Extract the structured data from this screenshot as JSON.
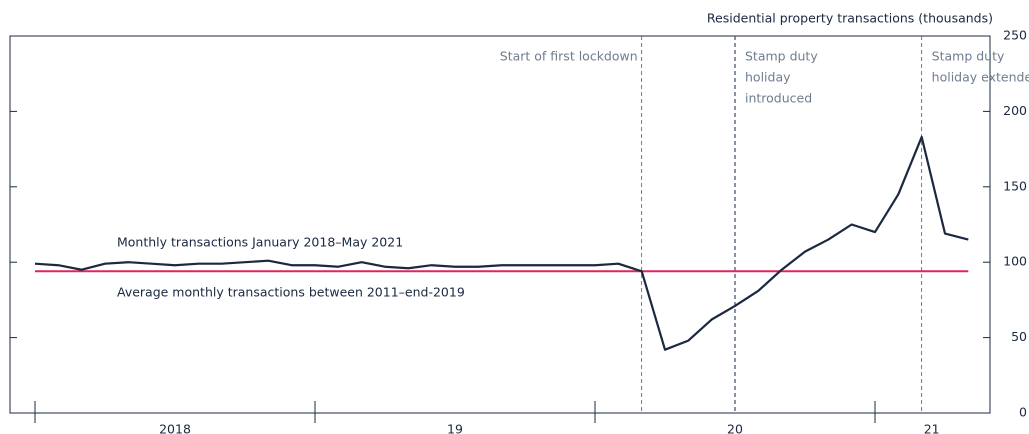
{
  "chart_data": {
    "type": "line",
    "y_axis_label": "Residential property transactions (thousands)",
    "categories": [
      null,
      null,
      null,
      null,
      null,
      null,
      null,
      null,
      null,
      null,
      null,
      null,
      null,
      null,
      null,
      null,
      null,
      null,
      null,
      null,
      null,
      null,
      null,
      null,
      null,
      null,
      null,
      null,
      null,
      null,
      null,
      null,
      null,
      null,
      null,
      null,
      null,
      null,
      null,
      null,
      null
    ],
    "year_labels": [
      "2018",
      "19",
      "20",
      "21"
    ],
    "series": [
      {
        "name": "Monthly transactions January 2018–May 2021",
        "color": "#1b2840",
        "values": [
          99,
          98,
          95,
          99,
          100,
          99,
          98,
          99,
          99,
          100,
          101,
          98,
          98,
          97,
          100,
          97,
          96,
          98,
          97,
          97,
          98,
          98,
          98,
          98,
          98,
          99,
          94,
          42,
          48,
          62,
          71,
          81,
          95,
          107,
          115,
          125,
          120,
          145,
          183,
          119,
          115
        ]
      },
      {
        "name": "Average monthly transactions between 2011–end-2019",
        "color": "#e0245e",
        "constant": 94
      }
    ],
    "annotations": [
      {
        "lines": [
          "Start of first lockdown"
        ],
        "at": 26
      },
      {
        "lines": [
          "Stamp duty",
          "holiday",
          "introduced"
        ],
        "at": 30
      },
      {
        "lines": [
          "Stamp duty",
          "holiday extended"
        ],
        "at": 38
      }
    ],
    "ylim": [
      0,
      250
    ],
    "yticks": [
      0,
      50,
      100,
      150,
      200,
      250
    ]
  }
}
